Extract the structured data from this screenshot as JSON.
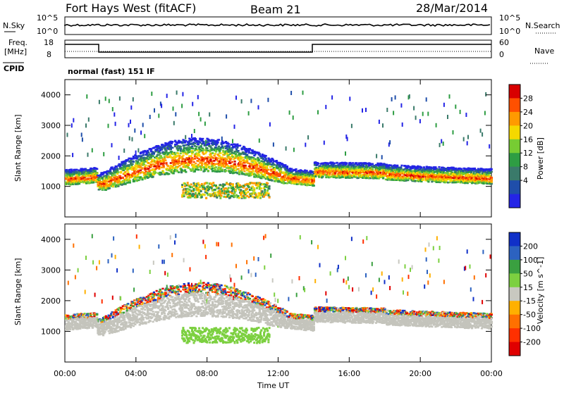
{
  "header": {
    "station": "Fort Hays West (fitACF)",
    "beam": "Beam 21",
    "date": "28/Mar/2014"
  },
  "strip_panels": {
    "nsky": {
      "label": "N.Sky",
      "ticks": [
        "10^5",
        "10^0"
      ]
    },
    "nsearch": {
      "label": "N.Search",
      "ticks": [
        "10^5",
        "10^0"
      ]
    },
    "freq": {
      "label_line1": "Freq.",
      "label_line2": "[MHz]",
      "ticks": [
        "18",
        "8"
      ]
    },
    "nave": {
      "label": "Nave",
      "ticks": [
        "60",
        "0"
      ]
    },
    "cpid": {
      "label": "CPID",
      "text": "normal (fast) 151 IF"
    }
  },
  "chart_data": [
    {
      "type": "heatmap",
      "title": "",
      "xlabel": "",
      "ylabel": "Slant Range [km]",
      "x_ticks": [
        "00:00",
        "04:00",
        "08:00",
        "12:00",
        "16:00",
        "20:00",
        "00:00"
      ],
      "y_ticks": [
        "1000",
        "2000",
        "3000",
        "4000"
      ],
      "ylim": [
        0,
        4500
      ],
      "colorbar": {
        "label": "Power [dB]",
        "ticks": [
          "28",
          "24",
          "20",
          "16",
          "12",
          "8",
          "4"
        ],
        "colors": [
          "#d80000",
          "#ff5000",
          "#ff9a00",
          "#f5d800",
          "#77cc33",
          "#2e9d43",
          "#3a7a6a",
          "#1f4eaa",
          "#2424e6"
        ]
      },
      "echo_bands": [
        {
          "name": "main band",
          "segments": [
            [
              0.0,
              1250
            ],
            [
              1.7,
              1300
            ],
            [
              2.0,
              1100
            ],
            [
              6.0,
              1500
            ],
            [
              9.0,
              1800
            ],
            [
              12.0,
              1400
            ],
            [
              14.0,
              1200
            ],
            [
              14.0,
              1500
            ],
            [
              18.0,
              1450
            ],
            [
              20.0,
              1300
            ],
            [
              24.0,
              1200
            ]
          ]
        }
      ]
    },
    {
      "type": "heatmap",
      "title": "",
      "xlabel": "Time UT",
      "ylabel": "Slant Range [km]",
      "x_ticks": [
        "00:00",
        "04:00",
        "08:00",
        "12:00",
        "16:00",
        "20:00",
        "00:00"
      ],
      "y_ticks": [
        "1000",
        "2000",
        "3000",
        "4000"
      ],
      "ylim": [
        0,
        4500
      ],
      "colorbar": {
        "label": "Velocity [m s^-1]",
        "ticks": [
          "200",
          "100",
          "50",
          "15",
          "-15",
          "-50",
          "-100",
          "-200"
        ],
        "colors": [
          "#1030c8",
          "#2c62c0",
          "#3aa040",
          "#7cd040",
          "#c8c8c0",
          "#ffb000",
          "#ff7000",
          "#ff3000",
          "#e00000"
        ]
      }
    }
  ]
}
